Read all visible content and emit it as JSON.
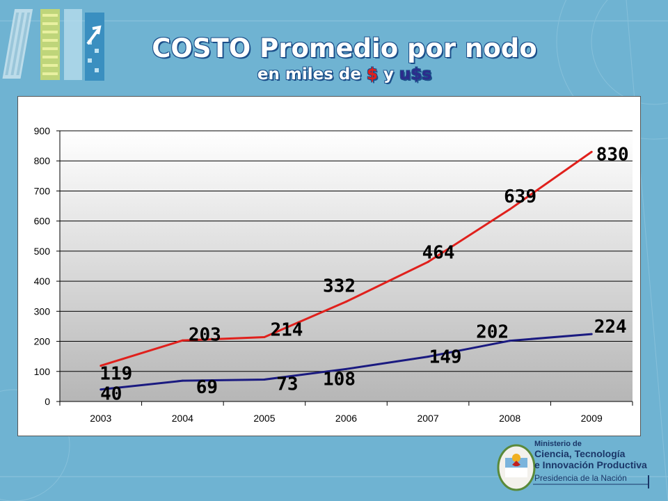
{
  "header": {
    "title": "COSTO Promedio por nodo",
    "subtitle_prefix": "en miles de ",
    "subtitle_peso": "$",
    "subtitle_and": " y ",
    "subtitle_usd": "u$s"
  },
  "footer": {
    "ministry_line1": "Ministerio de",
    "ministry_line2": "Ciencia, Tecnología",
    "ministry_line3": "e Innovación Productiva",
    "ministry_line4": "Presidencia de la Nación"
  },
  "colors": {
    "background": "#6fb3d2",
    "peso_series": "#e0201c",
    "usd_series": "#1a1a80"
  },
  "chart_data": {
    "type": "line",
    "title": "",
    "xlabel": "",
    "ylabel": "",
    "categories": [
      "2003",
      "2004",
      "2005",
      "2006",
      "2007",
      "2008",
      "2009"
    ],
    "ylim": [
      0,
      900
    ],
    "yticks": [
      0,
      100,
      200,
      300,
      400,
      500,
      600,
      700,
      800,
      900
    ],
    "grid": true,
    "legend": "none",
    "series": [
      {
        "values": [
          119,
          203,
          214,
          332,
          464,
          639,
          830
        ],
        "color": "#e0201c",
        "labels": [
          "119",
          "203",
          "214",
          "332",
          "464",
          "639",
          "830"
        ]
      },
      {
        "values": [
          40,
          69,
          73,
          108,
          149,
          202,
          224
        ],
        "color": "#1a1a80",
        "labels": [
          "40",
          "69",
          "73",
          "108",
          "149",
          "202",
          "224"
        ]
      }
    ]
  }
}
